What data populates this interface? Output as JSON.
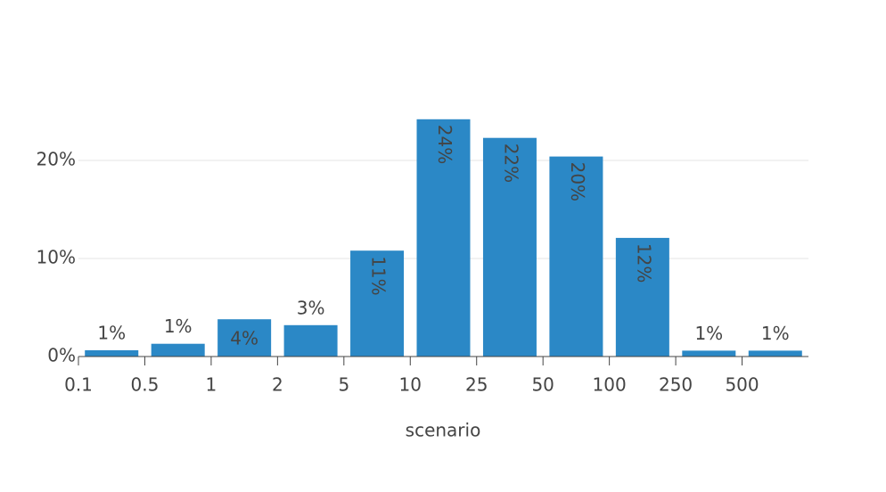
{
  "chart_data": {
    "type": "bar",
    "x_label": "scenario",
    "categories": [
      "0.1",
      "0.5",
      "1",
      "2",
      "5",
      "10",
      "25",
      "50",
      "100",
      "250",
      "500"
    ],
    "values": [
      0.64,
      1.3,
      3.8,
      3.2,
      10.8,
      24.2,
      22.3,
      20.4,
      12.1,
      0.6,
      0.6
    ],
    "value_labels": [
      "1%",
      "1%",
      "4%",
      "3%",
      "11%",
      "24%",
      "22%",
      "20%",
      "12%",
      "1%",
      "1%"
    ],
    "color": "#2b88c6",
    "ylim": [
      0,
      25.5
    ],
    "yticks": [
      {
        "value": 0,
        "label": "0%"
      },
      {
        "value": 10,
        "label": "10%"
      },
      {
        "value": 20,
        "label": "20%"
      }
    ],
    "grid": true
  }
}
